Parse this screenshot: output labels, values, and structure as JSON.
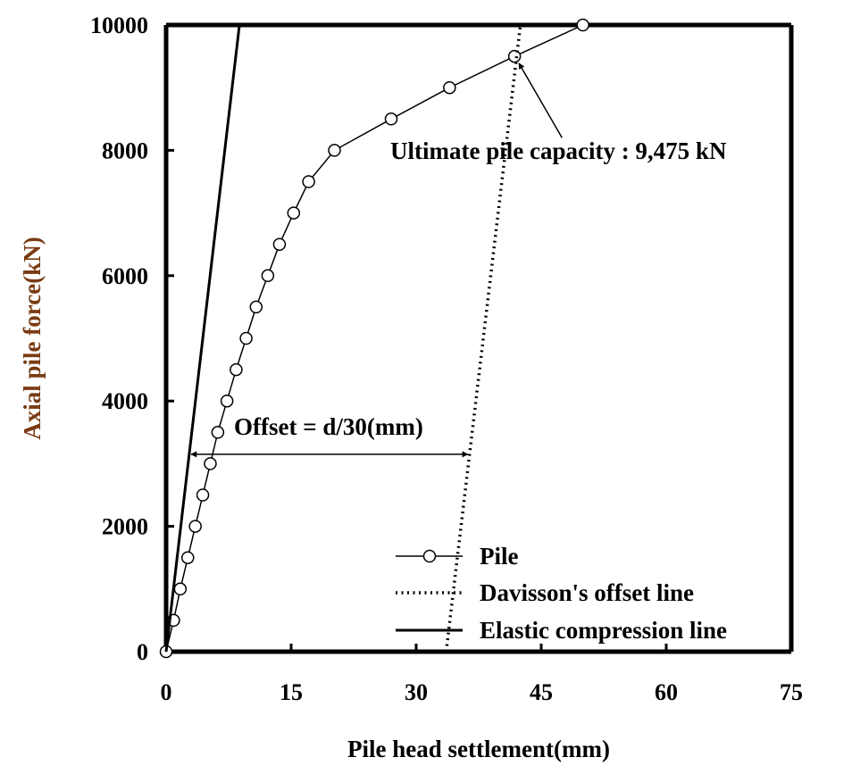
{
  "chart_data": {
    "type": "line",
    "xlabel": "Pile head settlement(mm)",
    "ylabel": "Axial pile force(kN)",
    "xlim": [
      0,
      75
    ],
    "ylim": [
      0,
      10000
    ],
    "x_ticks": [
      0,
      15,
      30,
      45,
      60,
      75
    ],
    "y_ticks": [
      0,
      2000,
      4000,
      6000,
      8000,
      10000
    ],
    "x_tick_labels": [
      "0",
      "15",
      "30",
      "45",
      "60",
      "75"
    ],
    "y_tick_labels": [
      "0",
      "2000",
      "4000",
      "6000",
      "8000",
      "10000"
    ],
    "grid": false,
    "legend_position": "bottom-right",
    "series": [
      {
        "name": "Pile",
        "style": "solid-with-open-circles",
        "color": "#000000",
        "points": [
          [
            0,
            0
          ],
          [
            0.9,
            500
          ],
          [
            1.7,
            1000
          ],
          [
            2.6,
            1500
          ],
          [
            3.5,
            2000
          ],
          [
            4.4,
            2500
          ],
          [
            5.3,
            3000
          ],
          [
            6.2,
            3500
          ],
          [
            7.3,
            4000
          ],
          [
            8.4,
            4500
          ],
          [
            9.6,
            5000
          ],
          [
            10.8,
            5500
          ],
          [
            12.2,
            6000
          ],
          [
            13.6,
            6500
          ],
          [
            15.3,
            7000
          ],
          [
            17.1,
            7500
          ],
          [
            20.2,
            8000
          ],
          [
            27.0,
            8500
          ],
          [
            34.0,
            9000
          ],
          [
            41.8,
            9500
          ],
          [
            50.0,
            10000
          ]
        ]
      },
      {
        "name": "Davisson's offset line",
        "style": "dotted",
        "color": "#000000",
        "points": [
          [
            33.6,
            0
          ],
          [
            42.5,
            10000
          ]
        ]
      },
      {
        "name": "Elastic compression line",
        "style": "solid",
        "color": "#000000",
        "points": [
          [
            0,
            0
          ],
          [
            8.8,
            10000
          ]
        ]
      }
    ],
    "annotations": [
      {
        "id": "ultimate",
        "text": "Ultimate pile capacity : 9,475 kN",
        "target": [
          41.9,
          9475
        ],
        "tail": [
          47.5,
          8200
        ]
      },
      {
        "id": "offset",
        "text": "Offset = d/30(mm)",
        "from": [
          3.0,
          3150
        ],
        "to": [
          36.2,
          3150
        ]
      }
    ]
  }
}
